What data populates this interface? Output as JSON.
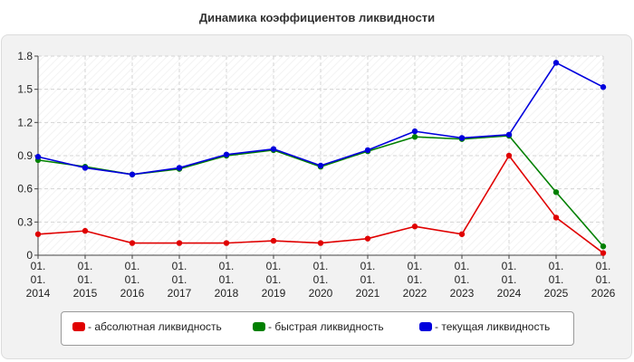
{
  "chart_data": {
    "type": "line",
    "title": "Динамика коэффициентов ликвидности",
    "xlabel": "",
    "ylabel": "",
    "categories": [
      [
        "01.",
        "01.",
        "2014"
      ],
      [
        "01.",
        "01.",
        "2015"
      ],
      [
        "01.",
        "01.",
        "2016"
      ],
      [
        "01.",
        "01.",
        "2017"
      ],
      [
        "01.",
        "01.",
        "2018"
      ],
      [
        "01.",
        "01.",
        "2019"
      ],
      [
        "01.",
        "01.",
        "2020"
      ],
      [
        "01.",
        "01.",
        "2021"
      ],
      [
        "01.",
        "01.",
        "2022"
      ],
      [
        "01.",
        "01.",
        "2023"
      ],
      [
        "01.",
        "01.",
        "2024"
      ],
      [
        "01.",
        "01.",
        "2025"
      ],
      [
        "01.",
        "01.",
        "2026"
      ]
    ],
    "yticks": [
      "0",
      "0.3",
      "0.6",
      "0.9",
      "1.2",
      "1.5",
      "1.8"
    ],
    "ylim": [
      0,
      1.8
    ],
    "grid": true,
    "legend_position": "bottom",
    "series": [
      {
        "name": "- абсолютная ликвидность",
        "color": "#e00000",
        "values": [
          0.19,
          0.22,
          0.11,
          0.11,
          0.11,
          0.13,
          0.11,
          0.15,
          0.26,
          0.19,
          0.9,
          0.34,
          0.02
        ]
      },
      {
        "name": "- быстрая ликвидность",
        "color": "#008000",
        "values": [
          0.86,
          0.8,
          0.73,
          0.78,
          0.9,
          0.95,
          0.8,
          0.94,
          1.07,
          1.05,
          1.08,
          0.57,
          0.08
        ]
      },
      {
        "name": "- текущая ликвидность",
        "color": "#0000dd",
        "values": [
          0.89,
          0.79,
          0.73,
          0.79,
          0.91,
          0.96,
          0.81,
          0.95,
          1.12,
          1.06,
          1.09,
          1.74,
          1.52
        ]
      }
    ]
  }
}
